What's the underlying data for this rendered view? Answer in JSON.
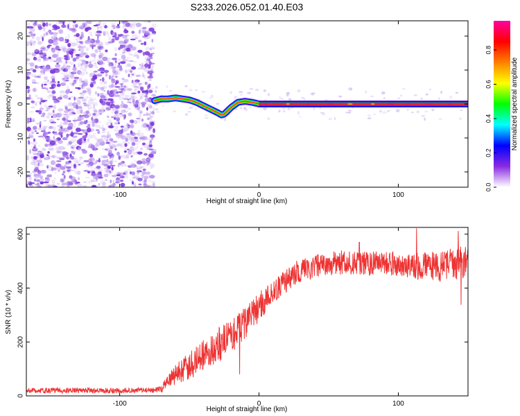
{
  "figure_title": "S233.2026.052.01.40.E03",
  "chart_data": [
    {
      "type": "heatmap",
      "title": "S233.2026.052.01.40.E03",
      "xlabel": "Height of straight line (km)",
      "ylabel": "Frequency (Hz)",
      "xlim": [
        -167,
        150
      ],
      "ylim": [
        -24.5,
        24.5
      ],
      "xticks": [
        -100,
        0,
        100
      ],
      "yticks": [
        -20,
        -10,
        0,
        10,
        20
      ],
      "xtick_labels": [
        "-100",
        "0",
        "100"
      ],
      "ytick_labels": [
        "-20",
        "-10",
        "0",
        "10",
        "20"
      ],
      "noise_region": {
        "x_from": -167,
        "x_to": -75,
        "freq_from": -24.5,
        "freq_to": 24.5
      },
      "trace": {
        "x": [
          -75,
          -70,
          -65,
          -60,
          -55,
          -50,
          -45,
          -40,
          -35,
          -30,
          -27,
          -25,
          -20,
          -15,
          -10,
          -5,
          0,
          10,
          20,
          30,
          50,
          80,
          100,
          120,
          150
        ],
        "freq": [
          1,
          1.5,
          1.5,
          1.8,
          1.5,
          1.2,
          0.5,
          -0.5,
          -1.5,
          -2.5,
          -3.2,
          -3,
          -1,
          0.5,
          0.8,
          0.5,
          0,
          0,
          0,
          0,
          0,
          0,
          0,
          0,
          0
        ]
      },
      "colorbar": {
        "label": "Normalized spectral amplitude",
        "range": [
          0,
          0.97
        ],
        "ticks": [
          0.0,
          0.2,
          0.4,
          0.6,
          0.8
        ],
        "tick_labels": [
          "0.0",
          "0.2",
          "0.4",
          "0.6",
          "0.8"
        ],
        "colormap": [
          "#ffffff",
          "#8a2be2",
          "#0000ff",
          "#00ffff",
          "#00ff00",
          "#ffff00",
          "#ff8000",
          "#ff0000",
          "#ff00a0"
        ]
      }
    },
    {
      "type": "line",
      "title": "",
      "xlabel": "Height of straight line (km)",
      "ylabel": "SNR (10 * v/v)",
      "xlim": [
        -167,
        150
      ],
      "ylim": [
        0,
        625
      ],
      "xticks": [
        -100,
        0,
        100
      ],
      "yticks": [
        0,
        200,
        400,
        600
      ],
      "xtick_labels": [
        "-100",
        "0",
        "100"
      ],
      "ytick_labels": [
        "0",
        "200",
        "400",
        "600"
      ],
      "series": [
        {
          "name": "SNR",
          "color": "#ee3333",
          "x": [
            -167,
            -150,
            -130,
            -110,
            -90,
            -75,
            -70,
            -68,
            -65,
            -60,
            -55,
            -50,
            -45,
            -40,
            -35,
            -30,
            -25,
            -20,
            -15,
            -10,
            -5,
            0,
            5,
            10,
            15,
            20,
            25,
            30,
            40,
            50,
            60,
            70,
            80,
            90,
            100,
            110,
            120,
            130,
            140,
            145,
            150
          ],
          "values": [
            20,
            20,
            20,
            20,
            20,
            22,
            25,
            40,
            60,
            80,
            95,
            110,
            130,
            150,
            170,
            185,
            200,
            220,
            245,
            270,
            300,
            330,
            360,
            385,
            410,
            430,
            450,
            465,
            480,
            490,
            495,
            495,
            490,
            495,
            490,
            480,
            485,
            480,
            490,
            495,
            500
          ],
          "noise_amplitude": [
            10,
            10,
            10,
            10,
            10,
            10,
            12,
            15,
            25,
            40,
            45,
            50,
            55,
            60,
            60,
            65,
            65,
            65,
            65,
            60,
            60,
            55,
            50,
            45,
            45,
            45,
            45,
            45,
            45,
            45,
            45,
            45,
            45,
            45,
            50,
            50,
            50,
            55,
            60,
            60,
            60
          ],
          "spikes": [
            {
              "x": 113,
              "value": 622
            },
            {
              "x": 143,
              "value": 612
            },
            {
              "x": 72,
              "value": 570
            },
            {
              "x": 145,
              "value": 338
            },
            {
              "x": -14,
              "value": 80
            }
          ]
        }
      ]
    }
  ]
}
